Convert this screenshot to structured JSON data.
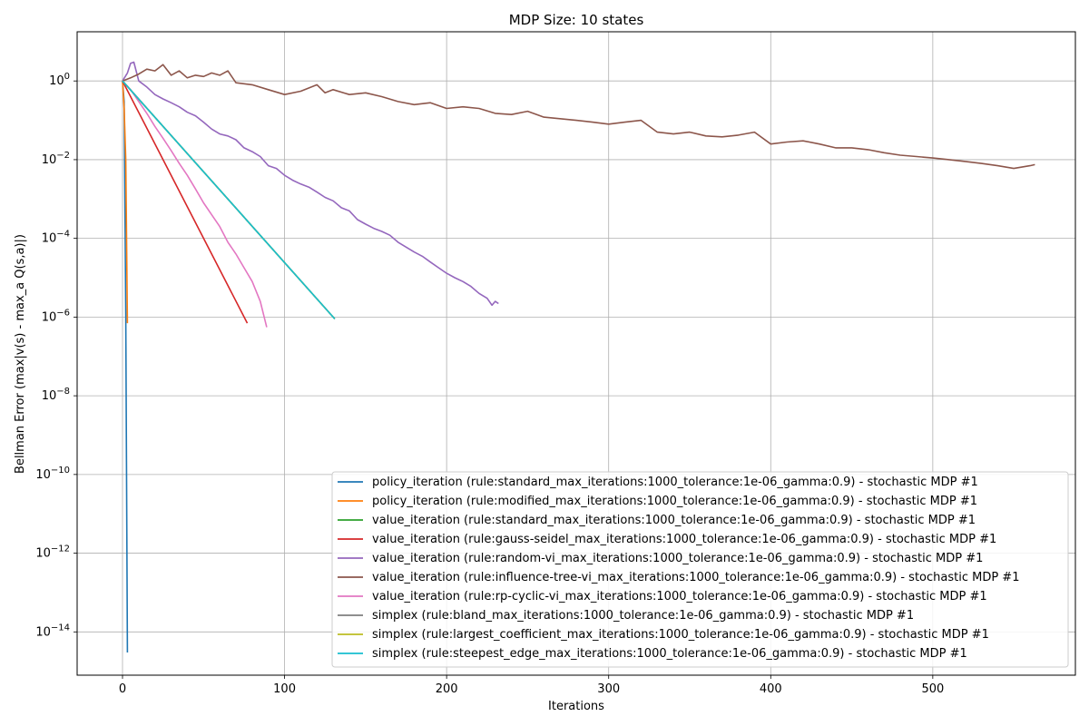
{
  "chart_data": {
    "type": "line",
    "title": "MDP Size: 10 states",
    "xlabel": "Iterations",
    "ylabel": "Bellman Error (max|v(s) - max_a Q(s,a)|)",
    "yscale": "log",
    "xlim": [
      -28,
      588
    ],
    "ylim_exp": [
      -15.1,
      1.25
    ],
    "x_ticks": [
      0,
      100,
      200,
      300,
      400,
      500
    ],
    "y_tick_exponents": [
      0,
      -2,
      -4,
      -6,
      -8,
      -10,
      -12,
      -14
    ],
    "grid": true,
    "legend_position": "lower-right",
    "series": [
      {
        "name": "policy_iteration (rule:standard_max_iterations:1000_tolerance:1e-06_gamma:0.9) - stochastic MDP #1",
        "color": "#1f77b4",
        "x": [
          0,
          1,
          2,
          3
        ],
        "y": [
          1.0,
          0.3,
          1e-06,
          3e-15
        ]
      },
      {
        "name": "policy_iteration (rule:modified_max_iterations:1000_tolerance:1e-06_gamma:0.9) - stochastic MDP #1",
        "color": "#ff7f0e",
        "x": [
          0,
          1,
          2,
          3
        ],
        "y": [
          1.0,
          0.2,
          0.01,
          7e-07
        ]
      },
      {
        "name": "value_iteration (rule:standard_max_iterations:1000_tolerance:1e-06_gamma:0.9) - stochastic MDP #1",
        "color": "#2ca02c",
        "x": [
          0,
          131
        ],
        "y": [
          1.0,
          9e-07
        ]
      },
      {
        "name": "value_iteration (rule:gauss-seidel_max_iterations:1000_tolerance:1e-06_gamma:0.9) - stochastic MDP #1",
        "color": "#d62728",
        "x": [
          0,
          77
        ],
        "y": [
          1.0,
          7e-07
        ]
      },
      {
        "name": "value_iteration (rule:random-vi_max_iterations:1000_tolerance:1e-06_gamma:0.9) - stochastic MDP #1",
        "color": "#9467bd",
        "x": [
          0,
          3,
          5,
          7,
          10,
          15,
          20,
          25,
          30,
          35,
          40,
          45,
          50,
          55,
          60,
          65,
          70,
          75,
          80,
          85,
          90,
          95,
          100,
          105,
          110,
          115,
          120,
          125,
          130,
          135,
          140,
          145,
          150,
          155,
          160,
          165,
          170,
          175,
          180,
          185,
          190,
          195,
          200,
          205,
          210,
          215,
          220,
          225,
          228,
          230,
          232
        ],
        "y": [
          1.0,
          1.6,
          2.8,
          3.0,
          1.0,
          0.7,
          0.45,
          0.35,
          0.28,
          0.22,
          0.16,
          0.13,
          0.09,
          0.06,
          0.045,
          0.04,
          0.032,
          0.02,
          0.016,
          0.012,
          0.007,
          0.006,
          0.004,
          0.003,
          0.0024,
          0.002,
          0.0015,
          0.0011,
          0.0009,
          0.0006,
          0.0005,
          0.0003,
          0.00023,
          0.00018,
          0.00015,
          0.00012,
          8e-05,
          6e-05,
          4.5e-05,
          3.5e-05,
          2.5e-05,
          1.8e-05,
          1.3e-05,
          1e-05,
          8e-06,
          6e-06,
          4e-06,
          3e-06,
          2e-06,
          2.5e-06,
          2.2e-06
        ]
      },
      {
        "name": "value_iteration (rule:influence-tree-vi_max_iterations:1000_tolerance:1e-06_gamma:0.9) - stochastic MDP #1",
        "color": "#8c564b",
        "x": [
          0,
          5,
          10,
          15,
          20,
          25,
          30,
          35,
          40,
          45,
          50,
          55,
          60,
          65,
          70,
          80,
          90,
          100,
          110,
          120,
          125,
          130,
          140,
          150,
          160,
          170,
          180,
          190,
          200,
          210,
          220,
          230,
          240,
          250,
          260,
          270,
          280,
          290,
          300,
          310,
          320,
          330,
          340,
          350,
          360,
          370,
          380,
          390,
          400,
          410,
          420,
          430,
          440,
          450,
          460,
          470,
          480,
          490,
          500,
          510,
          520,
          530,
          540,
          550,
          560,
          563
        ],
        "y": [
          1.0,
          1.2,
          1.5,
          2.0,
          1.8,
          2.6,
          1.4,
          1.8,
          1.2,
          1.4,
          1.3,
          1.6,
          1.4,
          1.8,
          0.9,
          0.8,
          0.6,
          0.45,
          0.55,
          0.8,
          0.5,
          0.6,
          0.45,
          0.5,
          0.4,
          0.3,
          0.25,
          0.28,
          0.2,
          0.22,
          0.2,
          0.15,
          0.14,
          0.17,
          0.12,
          0.11,
          0.1,
          0.09,
          0.08,
          0.09,
          0.1,
          0.05,
          0.045,
          0.05,
          0.04,
          0.038,
          0.042,
          0.05,
          0.025,
          0.028,
          0.03,
          0.025,
          0.02,
          0.02,
          0.018,
          0.015,
          0.013,
          0.012,
          0.011,
          0.01,
          0.009,
          0.008,
          0.007,
          0.006,
          0.007,
          0.0075
        ]
      },
      {
        "name": "value_iteration (rule:rp-cyclic-vi_max_iterations:1000_tolerance:1e-06_gamma:0.9) - stochastic MDP #1",
        "color": "#e377c2",
        "x": [
          0,
          5,
          10,
          15,
          20,
          25,
          30,
          35,
          40,
          45,
          50,
          55,
          60,
          65,
          70,
          75,
          80,
          85,
          89
        ],
        "y": [
          1.0,
          0.6,
          0.3,
          0.15,
          0.07,
          0.035,
          0.017,
          0.008,
          0.004,
          0.0018,
          0.0008,
          0.0004,
          0.0002,
          8e-05,
          4e-05,
          1.8e-05,
          8e-06,
          2.5e-06,
          5.5e-07
        ]
      },
      {
        "name": "simplex (rule:bland_max_iterations:1000_tolerance:1e-06_gamma:0.9) - stochastic MDP #1",
        "color": "#7f7f7f",
        "x": [
          0,
          131
        ],
        "y": [
          1.0,
          9e-07
        ]
      },
      {
        "name": "simplex (rule:largest_coefficient_max_iterations:1000_tolerance:1e-06_gamma:0.9) - stochastic MDP #1",
        "color": "#bcbd22",
        "x": [
          0,
          131
        ],
        "y": [
          1.0,
          9e-07
        ]
      },
      {
        "name": "simplex (rule:steepest_edge_max_iterations:1000_tolerance:1e-06_gamma:0.9) - stochastic MDP #1",
        "color": "#17becf",
        "x": [
          0,
          131
        ],
        "y": [
          1.0,
          9e-07
        ]
      }
    ]
  }
}
